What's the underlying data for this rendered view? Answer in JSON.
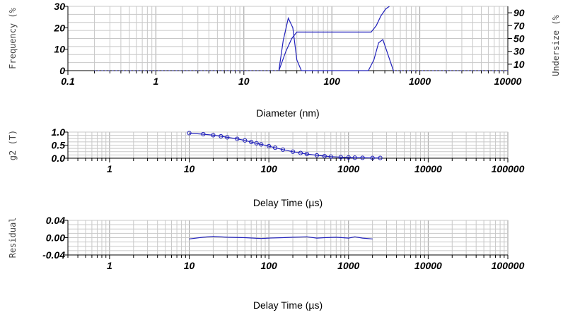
{
  "colors": {
    "series": "#2222bb",
    "grid": "#c8c8c8",
    "axis": "#000000"
  },
  "chart_data": [
    {
      "type": "line",
      "xlabel": "Diameter (nm)",
      "ylabel": "Frequency (%",
      "y2label": "Undersize (%",
      "xscale": "log",
      "xlim": [
        0.1,
        10000
      ],
      "ylim": [
        0,
        30
      ],
      "y2lim": [
        0,
        100
      ],
      "grid": true,
      "xticks": [
        "0.1",
        "1",
        "10",
        "100",
        "1000",
        "10000"
      ],
      "yticks": [
        "0",
        "10",
        "20",
        "30"
      ],
      "y2ticks": [
        "10",
        "30",
        "50",
        "70",
        "90"
      ],
      "series": [
        {
          "axis": "left",
          "style": "line",
          "x": [
            25,
            28,
            32,
            36,
            40,
            45,
            260,
            300,
            340,
            380,
            430,
            500
          ],
          "y": [
            0,
            14,
            24.5,
            20,
            5,
            0,
            0,
            5,
            13,
            14.5,
            8,
            0
          ]
        },
        {
          "axis": "right",
          "style": "line",
          "x": [
            25,
            30,
            35,
            40,
            100,
            280,
            320,
            360,
            410,
            450
          ],
          "y": [
            0,
            30,
            50,
            60,
            60,
            60,
            70,
            85,
            96,
            100
          ]
        }
      ]
    },
    {
      "type": "scatter",
      "xlabel": "Delay Time (µs)",
      "ylabel": "g2 (T)",
      "xscale": "log",
      "xlim": [
        0.3,
        100000
      ],
      "ylim": [
        0,
        1.0
      ],
      "grid": true,
      "xticks": [
        "1",
        "10",
        "100",
        "1000",
        "10000",
        "100000"
      ],
      "yticks": [
        "0.0",
        "0.5",
        "1.0"
      ],
      "series": [
        {
          "style": "markers+line",
          "x": [
            10,
            15,
            20,
            25,
            30,
            40,
            50,
            60,
            70,
            80,
            100,
            120,
            150,
            200,
            250,
            300,
            400,
            500,
            600,
            800,
            1000,
            1200,
            1500,
            2000,
            2500
          ],
          "y": [
            0.96,
            0.92,
            0.88,
            0.84,
            0.8,
            0.74,
            0.68,
            0.62,
            0.57,
            0.53,
            0.46,
            0.4,
            0.33,
            0.25,
            0.2,
            0.16,
            0.11,
            0.08,
            0.06,
            0.04,
            0.03,
            0.02,
            0.015,
            0.01,
            0.01
          ]
        }
      ]
    },
    {
      "type": "line",
      "xlabel": "Delay Time (µs)",
      "ylabel": "Residual",
      "xscale": "log",
      "xlim": [
        0.3,
        100000
      ],
      "ylim": [
        -0.04,
        0.04
      ],
      "grid": true,
      "xticks": [
        "1",
        "10",
        "100",
        "1000",
        "10000",
        "100000"
      ],
      "yticks": [
        "-0.04",
        "0.00",
        "0.04"
      ],
      "series": [
        {
          "style": "line",
          "x": [
            10,
            15,
            20,
            30,
            50,
            80,
            100,
            150,
            200,
            300,
            400,
            500,
            700,
            1000,
            1200,
            1500,
            2000
          ],
          "y": [
            -0.003,
            0.001,
            0.003,
            0.001,
            0.0,
            -0.002,
            -0.001,
            0.0,
            0.001,
            0.002,
            -0.001,
            0.0,
            0.001,
            -0.001,
            0.002,
            -0.001,
            -0.003
          ]
        }
      ]
    }
  ]
}
